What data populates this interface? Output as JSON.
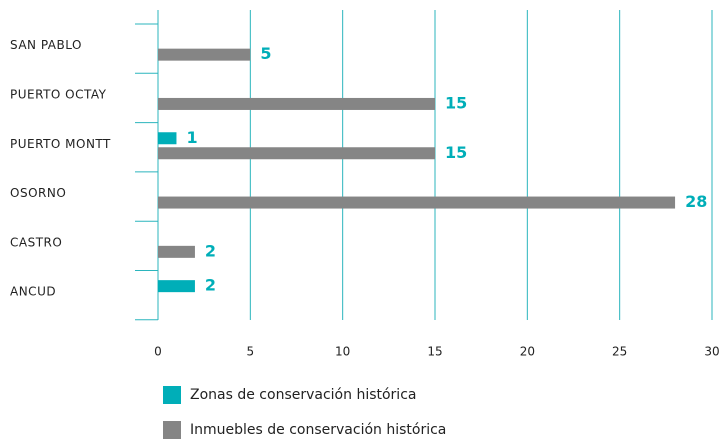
{
  "chart_data": {
    "type": "bar",
    "categories": [
      "SAN PABLO",
      "PUERTO OCTAY",
      "PUERTO MONTT",
      "OSORNO",
      "CASTRO",
      "ANCUD"
    ],
    "series": [
      {
        "name": "Zonas de conservación histórica",
        "color": "#00aeb8",
        "values": [
          null,
          null,
          1,
          null,
          null,
          2
        ]
      },
      {
        "name": "Inmuebles de conservación histórica",
        "color": "#858585",
        "values": [
          5,
          15,
          15,
          28,
          2,
          null
        ]
      }
    ],
    "xlim": [
      0,
      30
    ],
    "xticks": [
      0,
      5,
      10,
      15,
      20,
      25,
      30
    ],
    "grid": true
  }
}
